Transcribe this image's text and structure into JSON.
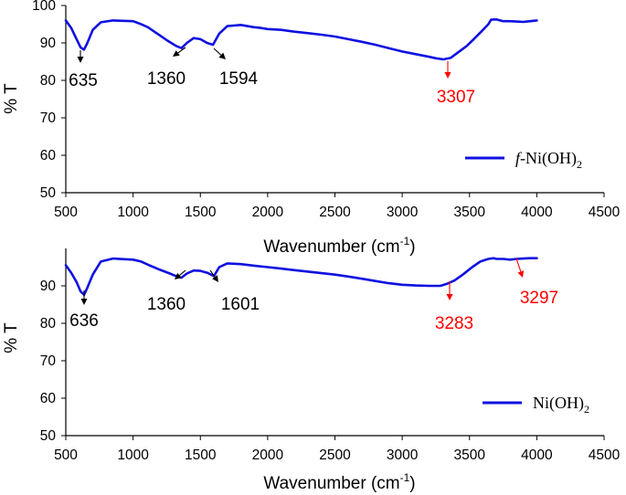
{
  "colors": {
    "series": "#1010e0",
    "arrow_black": "#000000",
    "arrow_red": "#ff0000"
  },
  "chart_data": [
    {
      "type": "line",
      "xlabel_main": "Wavenumber (cm",
      "xlabel_sup": "-1",
      "xlabel_end": ")",
      "ylabel": "% T",
      "xlim": [
        500,
        4500
      ],
      "ylim": [
        50,
        100
      ],
      "xticks": [
        "500",
        "1000",
        "1500",
        "2000",
        "2500",
        "3000",
        "3500",
        "4000",
        "4500"
      ],
      "yticks": [
        "50",
        "60",
        "70",
        "80",
        "90",
        "100"
      ],
      "legend": {
        "prefix": "f",
        "main": "-Ni(OH)",
        "sub": "2",
        "placement": "bottom-right"
      },
      "series": [
        {
          "x": [
            500,
            540,
            580,
            610,
            635,
            660,
            700,
            760,
            850,
            1000,
            1060,
            1110,
            1180,
            1260,
            1320,
            1360,
            1400,
            1450,
            1500,
            1550,
            1594,
            1640,
            1700,
            1800,
            1900,
            1950,
            2000,
            2100,
            2200,
            2300,
            2400,
            2500,
            2600,
            2700,
            2800,
            2900,
            3000,
            3100,
            3200,
            3250,
            3307,
            3360,
            3420,
            3480,
            3540,
            3600,
            3640,
            3660,
            3700,
            3750,
            3800,
            3850,
            3900,
            3950,
            4000
          ],
          "y": [
            96.0,
            94.0,
            91.0,
            88.8,
            88.2,
            90.0,
            93.5,
            95.5,
            96.0,
            95.8,
            95.0,
            94.2,
            92.5,
            90.5,
            89.2,
            88.6,
            90.0,
            91.3,
            91.0,
            90.0,
            89.5,
            92.5,
            94.5,
            94.8,
            94.2,
            94.0,
            93.7,
            93.5,
            93.0,
            92.6,
            92.2,
            91.7,
            91.0,
            90.3,
            89.5,
            88.6,
            87.7,
            87.0,
            86.3,
            85.9,
            85.6,
            86.0,
            87.6,
            89.2,
            91.3,
            93.5,
            95.0,
            96.2,
            96.3,
            95.8,
            95.8,
            95.7,
            95.6,
            95.8,
            96.0
          ]
        }
      ],
      "annotations": [
        {
          "label": "635",
          "x": 635,
          "color": "black"
        },
        {
          "label": "1360",
          "x": 1360,
          "color": "black"
        },
        {
          "label": "1594",
          "x": 1594,
          "color": "black"
        },
        {
          "label": "3307",
          "x": 3307,
          "color": "red"
        }
      ]
    },
    {
      "type": "line",
      "xlabel_main": "Wavenumber (cm",
      "xlabel_sup": "-1",
      "xlabel_end": ")",
      "ylabel": "% T",
      "xlim": [
        500,
        4500
      ],
      "ylim": [
        50,
        100
      ],
      "xticks": [
        "500",
        "1000",
        "1500",
        "2000",
        "2500",
        "3000",
        "3500",
        "4000",
        "4500"
      ],
      "yticks": [
        "50",
        "60",
        "70",
        "80",
        "90"
      ],
      "legend": {
        "prefix": "",
        "main": "Ni(OH)",
        "sub": "2",
        "placement": "bottom-right"
      },
      "series": [
        {
          "x": [
            500,
            540,
            580,
            610,
            636,
            660,
            700,
            760,
            850,
            1000,
            1060,
            1120,
            1200,
            1280,
            1340,
            1360,
            1400,
            1450,
            1500,
            1550,
            1601,
            1640,
            1700,
            1800,
            1900,
            2000,
            2100,
            2200,
            2300,
            2400,
            2500,
            2600,
            2700,
            2800,
            2900,
            3000,
            3100,
            3200,
            3283,
            3330,
            3390,
            3450,
            3520,
            3580,
            3640,
            3680,
            3700,
            3750,
            3800,
            3850,
            3900,
            3950,
            4000
          ],
          "y": [
            95.5,
            93.5,
            91.0,
            88.5,
            87.6,
            89.5,
            93.0,
            96.5,
            97.3,
            97.0,
            96.5,
            95.5,
            94.3,
            93.2,
            92.3,
            92.2,
            93.3,
            94.1,
            94.0,
            93.5,
            92.6,
            95.0,
            96.0,
            95.8,
            95.4,
            95.0,
            94.6,
            94.2,
            93.8,
            93.4,
            93.0,
            92.5,
            91.9,
            91.3,
            90.7,
            90.3,
            90.1,
            90.0,
            90.0,
            90.5,
            91.5,
            93.0,
            95.0,
            96.5,
            97.2,
            97.4,
            97.2,
            97.2,
            97.0,
            97.2,
            97.3,
            97.4,
            97.4
          ]
        }
      ],
      "annotations": [
        {
          "label": "636",
          "x": 636,
          "color": "black"
        },
        {
          "label": "1360",
          "x": 1360,
          "color": "black"
        },
        {
          "label": "1601",
          "x": 1601,
          "color": "black"
        },
        {
          "label": "3283",
          "x": 3283,
          "color": "red"
        },
        {
          "label": "3297",
          "x": 3800,
          "color": "red"
        }
      ]
    }
  ]
}
